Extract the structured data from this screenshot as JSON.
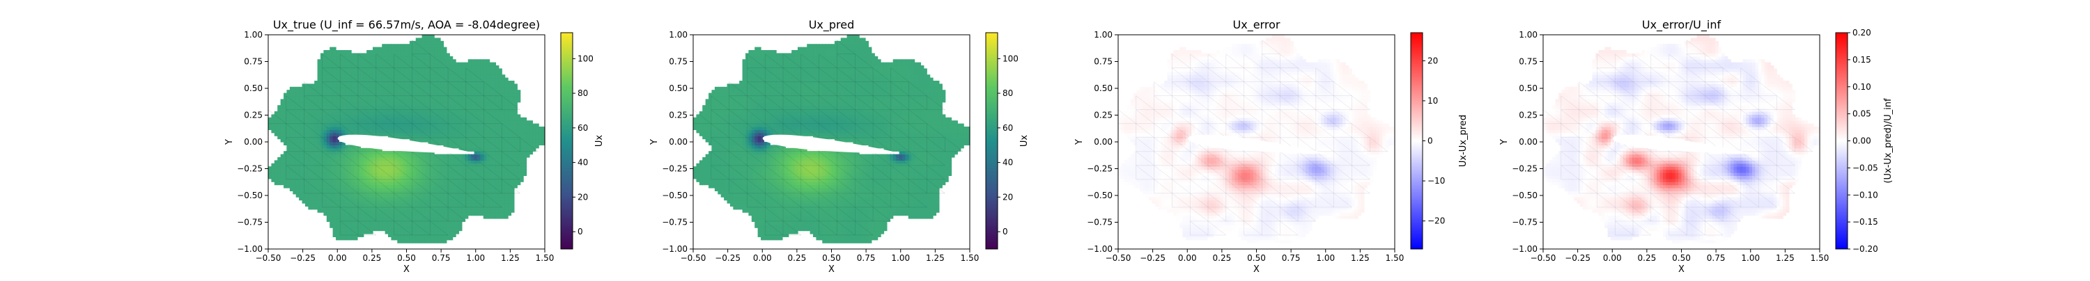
{
  "chart_data": [
    {
      "type": "heatmap",
      "title": "Ux_true (U_inf = 66.57m/s, AOA = -8.04degree)",
      "xlabel": "X",
      "ylabel": "Y",
      "xlim": [
        -0.5,
        1.5
      ],
      "ylim": [
        -1.0,
        1.0
      ],
      "xticks": [
        "−0.50",
        "−0.25",
        "0.00",
        "0.25",
        "0.50",
        "0.75",
        "1.00",
        "1.25",
        "1.50"
      ],
      "yticks": [
        "−1.00",
        "−0.75",
        "−0.50",
        "−0.25",
        "0.00",
        "0.25",
        "0.50",
        "0.75",
        "1.00"
      ],
      "colorbar": {
        "label": "Ux",
        "colormap": "viridis",
        "range": [
          -10,
          115
        ],
        "ticks": [
          "0",
          "20",
          "40",
          "60",
          "80",
          "100"
        ],
        "tick_values": [
          0,
          20,
          40,
          60,
          80,
          100
        ]
      },
      "field": "true"
    },
    {
      "type": "heatmap",
      "title": "Ux_pred",
      "xlabel": "X",
      "ylabel": "Y",
      "xlim": [
        -0.5,
        1.5
      ],
      "ylim": [
        -1.0,
        1.0
      ],
      "xticks": [
        "−0.50",
        "−0.25",
        "0.00",
        "0.25",
        "0.50",
        "0.75",
        "1.00",
        "1.25",
        "1.50"
      ],
      "yticks": [
        "−1.00",
        "−0.75",
        "−0.50",
        "−0.25",
        "0.00",
        "0.25",
        "0.50",
        "0.75",
        "1.00"
      ],
      "colorbar": {
        "label": "Ux",
        "colormap": "viridis",
        "range": [
          -10,
          115
        ],
        "ticks": [
          "0",
          "20",
          "40",
          "60",
          "80",
          "100"
        ],
        "tick_values": [
          0,
          20,
          40,
          60,
          80,
          100
        ]
      },
      "field": "pred"
    },
    {
      "type": "heatmap",
      "title": "Ux_error",
      "xlabel": "X",
      "ylabel": "Y",
      "xlim": [
        -0.5,
        1.5
      ],
      "ylim": [
        -1.0,
        1.0
      ],
      "xticks": [
        "−0.50",
        "−0.25",
        "0.00",
        "0.25",
        "0.50",
        "0.75",
        "1.00",
        "1.25",
        "1.50"
      ],
      "yticks": [
        "−1.00",
        "−0.75",
        "−0.50",
        "−0.25",
        "0.00",
        "0.25",
        "0.50",
        "0.75",
        "1.00"
      ],
      "colorbar": {
        "label": "Ux-Ux_pred",
        "colormap": "bwr",
        "range": [
          -27,
          27
        ],
        "ticks": [
          "−20",
          "−10",
          "0",
          "10",
          "20"
        ],
        "tick_values": [
          -20,
          -10,
          0,
          10,
          20
        ]
      },
      "field": "error"
    },
    {
      "type": "heatmap",
      "title": "Ux_error/U_inf",
      "xlabel": "X",
      "ylabel": "Y",
      "xlim": [
        -0.5,
        1.5
      ],
      "ylim": [
        -1.0,
        1.0
      ],
      "xticks": [
        "−0.50",
        "−0.25",
        "0.00",
        "0.25",
        "0.50",
        "0.75",
        "1.00",
        "1.25",
        "1.50"
      ],
      "yticks": [
        "−1.00",
        "−0.75",
        "−0.50",
        "−0.25",
        "0.00",
        "0.25",
        "0.50",
        "0.75",
        "1.00"
      ],
      "colorbar": {
        "label": "(Ux-Ux_pred)/U_inf",
        "colormap": "bwr",
        "range": [
          -0.2,
          0.2
        ],
        "ticks": [
          "−0.20",
          "−0.15",
          "−0.10",
          "−0.05",
          "0.00",
          "0.05",
          "0.10",
          "0.15",
          "0.20"
        ],
        "tick_values": [
          -0.2,
          -0.15,
          -0.1,
          -0.05,
          0,
          0.05,
          0.1,
          0.15,
          0.2
        ]
      },
      "field": "relerror"
    }
  ]
}
